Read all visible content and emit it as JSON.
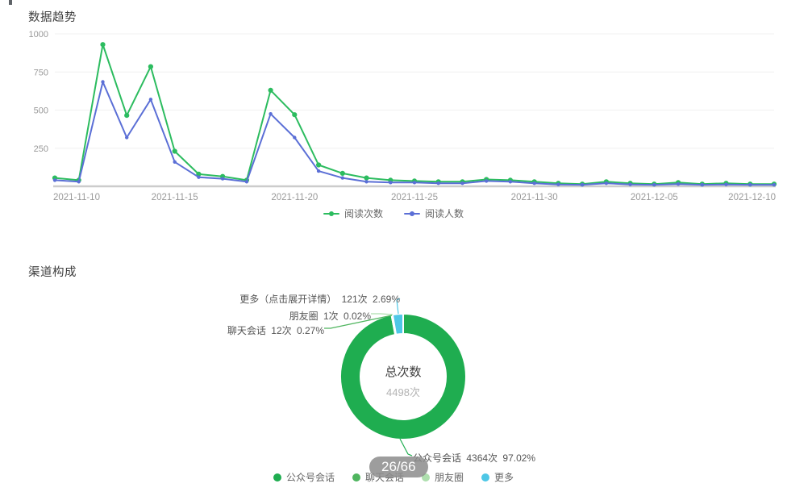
{
  "sections": {
    "trend_title": "数据趋势",
    "channel_title": "渠道构成"
  },
  "badge": "26/66",
  "chart_data": [
    {
      "type": "line",
      "title": "数据趋势",
      "x": [
        "2021-11-10",
        "2021-11-11",
        "2021-11-12",
        "2021-11-13",
        "2021-11-14",
        "2021-11-15",
        "2021-11-16",
        "2021-11-17",
        "2021-11-18",
        "2021-11-19",
        "2021-11-20",
        "2021-11-21",
        "2021-11-22",
        "2021-11-23",
        "2021-11-24",
        "2021-11-25",
        "2021-11-26",
        "2021-11-27",
        "2021-11-28",
        "2021-11-29",
        "2021-11-30",
        "2021-12-01",
        "2021-12-02",
        "2021-12-03",
        "2021-12-04",
        "2021-12-05",
        "2021-12-06",
        "2021-12-07",
        "2021-12-08",
        "2021-12-09",
        "2021-12-10"
      ],
      "x_tick_labels": [
        "2021-11-10",
        "2021-11-15",
        "2021-11-20",
        "2021-11-25",
        "2021-11-30",
        "2021-12-05",
        "2021-12-10"
      ],
      "x_tick_every": 5,
      "series": [
        {
          "name": "阅读次数",
          "color": "#2CBC5F",
          "values": [
            55,
            40,
            930,
            465,
            785,
            230,
            80,
            65,
            40,
            630,
            470,
            140,
            85,
            55,
            40,
            35,
            30,
            30,
            45,
            40,
            30,
            20,
            15,
            30,
            20,
            15,
            25,
            15,
            20,
            15,
            15
          ]
        },
        {
          "name": "阅读人数",
          "color": "#5B6FD6",
          "values": [
            40,
            30,
            685,
            320,
            570,
            160,
            60,
            50,
            30,
            475,
            320,
            100,
            55,
            30,
            25,
            25,
            20,
            20,
            35,
            30,
            20,
            12,
            10,
            20,
            12,
            10,
            15,
            10,
            12,
            10,
            10
          ]
        }
      ],
      "ylim": [
        0,
        1000
      ],
      "yticks": [
        250,
        500,
        750,
        1000
      ],
      "grid": true,
      "legend_position": "bottom"
    },
    {
      "type": "pie",
      "donut": true,
      "title": "渠道构成",
      "total": {
        "label": "总次数",
        "value": "4498次"
      },
      "slices": [
        {
          "name": "公众号会话",
          "callout_name": "公众号会话",
          "count": 4364,
          "count_label": "4364次",
          "percent": 97.02,
          "percent_label": "97.02%",
          "color": "#1FAD50"
        },
        {
          "name": "聊天会话",
          "callout_name": "聊天会话",
          "count": 12,
          "count_label": "12次",
          "percent": 0.27,
          "percent_label": "0.27%",
          "color": "#4FB55F"
        },
        {
          "name": "朋友圈",
          "callout_name": "朋友圈",
          "count": 1,
          "count_label": "1次",
          "percent": 0.02,
          "percent_label": "0.02%",
          "color": "#AEDFAE"
        },
        {
          "name": "更多",
          "callout_name": "更多（点击展开详情）",
          "count": 121,
          "count_label": "121次",
          "percent": 2.69,
          "percent_label": "2.69%",
          "color": "#4EC7E6"
        }
      ],
      "legend": [
        "公众号会话",
        "聊天会话",
        "朋友圈",
        "更多"
      ],
      "legend_position": "bottom"
    }
  ]
}
